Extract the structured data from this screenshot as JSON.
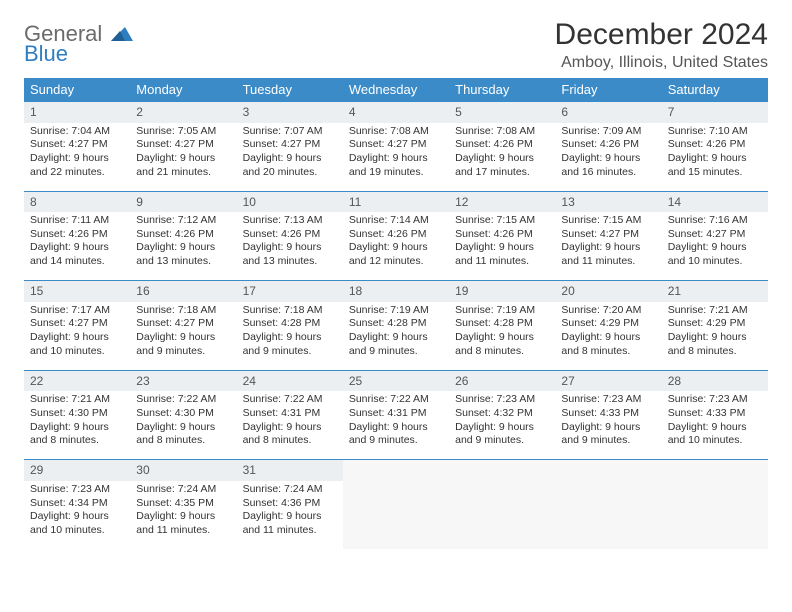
{
  "logo": {
    "line1": "General",
    "line2": "Blue"
  },
  "title": "December 2024",
  "location": "Amboy, Illinois, United States",
  "colors": {
    "header_bg": "#3b8bc9",
    "header_text": "#ffffff",
    "daynum_bg": "#eceff1",
    "border": "#3b8bc9",
    "logo_gray": "#6b6b6b",
    "logo_blue": "#2f7ec2"
  },
  "weekdays": [
    "Sunday",
    "Monday",
    "Tuesday",
    "Wednesday",
    "Thursday",
    "Friday",
    "Saturday"
  ],
  "weeks": [
    {
      "nums": [
        "1",
        "2",
        "3",
        "4",
        "5",
        "6",
        "7"
      ],
      "cells": [
        {
          "sunrise": "Sunrise: 7:04 AM",
          "sunset": "Sunset: 4:27 PM",
          "day1": "Daylight: 9 hours",
          "day2": "and 22 minutes."
        },
        {
          "sunrise": "Sunrise: 7:05 AM",
          "sunset": "Sunset: 4:27 PM",
          "day1": "Daylight: 9 hours",
          "day2": "and 21 minutes."
        },
        {
          "sunrise": "Sunrise: 7:07 AM",
          "sunset": "Sunset: 4:27 PM",
          "day1": "Daylight: 9 hours",
          "day2": "and 20 minutes."
        },
        {
          "sunrise": "Sunrise: 7:08 AM",
          "sunset": "Sunset: 4:27 PM",
          "day1": "Daylight: 9 hours",
          "day2": "and 19 minutes."
        },
        {
          "sunrise": "Sunrise: 7:08 AM",
          "sunset": "Sunset: 4:26 PM",
          "day1": "Daylight: 9 hours",
          "day2": "and 17 minutes."
        },
        {
          "sunrise": "Sunrise: 7:09 AM",
          "sunset": "Sunset: 4:26 PM",
          "day1": "Daylight: 9 hours",
          "day2": "and 16 minutes."
        },
        {
          "sunrise": "Sunrise: 7:10 AM",
          "sunset": "Sunset: 4:26 PM",
          "day1": "Daylight: 9 hours",
          "day2": "and 15 minutes."
        }
      ]
    },
    {
      "nums": [
        "8",
        "9",
        "10",
        "11",
        "12",
        "13",
        "14"
      ],
      "cells": [
        {
          "sunrise": "Sunrise: 7:11 AM",
          "sunset": "Sunset: 4:26 PM",
          "day1": "Daylight: 9 hours",
          "day2": "and 14 minutes."
        },
        {
          "sunrise": "Sunrise: 7:12 AM",
          "sunset": "Sunset: 4:26 PM",
          "day1": "Daylight: 9 hours",
          "day2": "and 13 minutes."
        },
        {
          "sunrise": "Sunrise: 7:13 AM",
          "sunset": "Sunset: 4:26 PM",
          "day1": "Daylight: 9 hours",
          "day2": "and 13 minutes."
        },
        {
          "sunrise": "Sunrise: 7:14 AM",
          "sunset": "Sunset: 4:26 PM",
          "day1": "Daylight: 9 hours",
          "day2": "and 12 minutes."
        },
        {
          "sunrise": "Sunrise: 7:15 AM",
          "sunset": "Sunset: 4:26 PM",
          "day1": "Daylight: 9 hours",
          "day2": "and 11 minutes."
        },
        {
          "sunrise": "Sunrise: 7:15 AM",
          "sunset": "Sunset: 4:27 PM",
          "day1": "Daylight: 9 hours",
          "day2": "and 11 minutes."
        },
        {
          "sunrise": "Sunrise: 7:16 AM",
          "sunset": "Sunset: 4:27 PM",
          "day1": "Daylight: 9 hours",
          "day2": "and 10 minutes."
        }
      ]
    },
    {
      "nums": [
        "15",
        "16",
        "17",
        "18",
        "19",
        "20",
        "21"
      ],
      "cells": [
        {
          "sunrise": "Sunrise: 7:17 AM",
          "sunset": "Sunset: 4:27 PM",
          "day1": "Daylight: 9 hours",
          "day2": "and 10 minutes."
        },
        {
          "sunrise": "Sunrise: 7:18 AM",
          "sunset": "Sunset: 4:27 PM",
          "day1": "Daylight: 9 hours",
          "day2": "and 9 minutes."
        },
        {
          "sunrise": "Sunrise: 7:18 AM",
          "sunset": "Sunset: 4:28 PM",
          "day1": "Daylight: 9 hours",
          "day2": "and 9 minutes."
        },
        {
          "sunrise": "Sunrise: 7:19 AM",
          "sunset": "Sunset: 4:28 PM",
          "day1": "Daylight: 9 hours",
          "day2": "and 9 minutes."
        },
        {
          "sunrise": "Sunrise: 7:19 AM",
          "sunset": "Sunset: 4:28 PM",
          "day1": "Daylight: 9 hours",
          "day2": "and 8 minutes."
        },
        {
          "sunrise": "Sunrise: 7:20 AM",
          "sunset": "Sunset: 4:29 PM",
          "day1": "Daylight: 9 hours",
          "day2": "and 8 minutes."
        },
        {
          "sunrise": "Sunrise: 7:21 AM",
          "sunset": "Sunset: 4:29 PM",
          "day1": "Daylight: 9 hours",
          "day2": "and 8 minutes."
        }
      ]
    },
    {
      "nums": [
        "22",
        "23",
        "24",
        "25",
        "26",
        "27",
        "28"
      ],
      "cells": [
        {
          "sunrise": "Sunrise: 7:21 AM",
          "sunset": "Sunset: 4:30 PM",
          "day1": "Daylight: 9 hours",
          "day2": "and 8 minutes."
        },
        {
          "sunrise": "Sunrise: 7:22 AM",
          "sunset": "Sunset: 4:30 PM",
          "day1": "Daylight: 9 hours",
          "day2": "and 8 minutes."
        },
        {
          "sunrise": "Sunrise: 7:22 AM",
          "sunset": "Sunset: 4:31 PM",
          "day1": "Daylight: 9 hours",
          "day2": "and 8 minutes."
        },
        {
          "sunrise": "Sunrise: 7:22 AM",
          "sunset": "Sunset: 4:31 PM",
          "day1": "Daylight: 9 hours",
          "day2": "and 9 minutes."
        },
        {
          "sunrise": "Sunrise: 7:23 AM",
          "sunset": "Sunset: 4:32 PM",
          "day1": "Daylight: 9 hours",
          "day2": "and 9 minutes."
        },
        {
          "sunrise": "Sunrise: 7:23 AM",
          "sunset": "Sunset: 4:33 PM",
          "day1": "Daylight: 9 hours",
          "day2": "and 9 minutes."
        },
        {
          "sunrise": "Sunrise: 7:23 AM",
          "sunset": "Sunset: 4:33 PM",
          "day1": "Daylight: 9 hours",
          "day2": "and 10 minutes."
        }
      ]
    },
    {
      "nums": [
        "29",
        "30",
        "31",
        "",
        "",
        "",
        ""
      ],
      "cells": [
        {
          "sunrise": "Sunrise: 7:23 AM",
          "sunset": "Sunset: 4:34 PM",
          "day1": "Daylight: 9 hours",
          "day2": "and 10 minutes."
        },
        {
          "sunrise": "Sunrise: 7:24 AM",
          "sunset": "Sunset: 4:35 PM",
          "day1": "Daylight: 9 hours",
          "day2": "and 11 minutes."
        },
        {
          "sunrise": "Sunrise: 7:24 AM",
          "sunset": "Sunset: 4:36 PM",
          "day1": "Daylight: 9 hours",
          "day2": "and 11 minutes."
        },
        {
          "empty": true
        },
        {
          "empty": true
        },
        {
          "empty": true
        },
        {
          "empty": true
        }
      ]
    }
  ]
}
